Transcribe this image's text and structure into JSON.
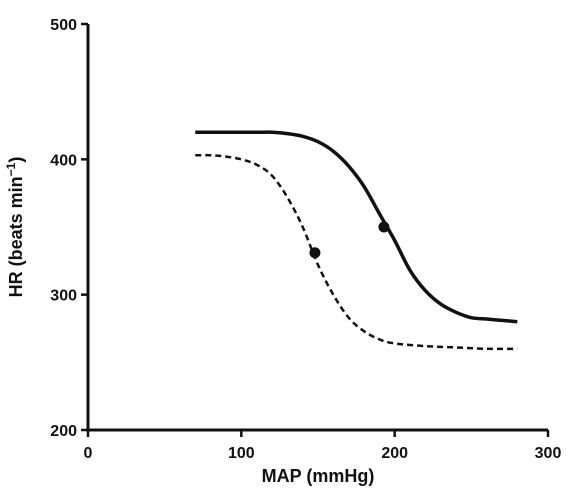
{
  "chart_data": {
    "type": "line",
    "xlabel": "MAP (mmHg)",
    "ylabel": "HR (beats min",
    "ylabel_sup": "−1",
    "ylabel_close": ")",
    "xlim": [
      0,
      300
    ],
    "ylim": [
      200,
      500
    ],
    "x_ticks": [
      0,
      100,
      200,
      300
    ],
    "y_ticks": [
      200,
      300,
      400,
      500
    ],
    "grid": false,
    "series": [
      {
        "style": "solid",
        "x": [
          70,
          90,
          110,
          120,
          130,
          140,
          150,
          160,
          170,
          180,
          190,
          200,
          210,
          220,
          230,
          240,
          250,
          260,
          270,
          280
        ],
        "y": [
          420,
          420,
          420,
          420,
          419,
          417,
          413,
          406,
          395,
          380,
          360,
          340,
          318,
          303,
          293,
          287,
          283,
          282,
          281,
          280
        ],
        "midpoint": {
          "x": 193,
          "y": 350
        }
      },
      {
        "style": "dashed",
        "x": [
          70,
          80,
          90,
          100,
          110,
          120,
          130,
          140,
          150,
          160,
          170,
          180,
          190,
          200,
          220,
          240,
          260,
          280
        ],
        "y": [
          403,
          403,
          402,
          400,
          396,
          388,
          372,
          350,
          322,
          300,
          283,
          273,
          267,
          264,
          262,
          261,
          260,
          260
        ],
        "midpoint": {
          "x": 148,
          "y": 331
        }
      }
    ]
  }
}
